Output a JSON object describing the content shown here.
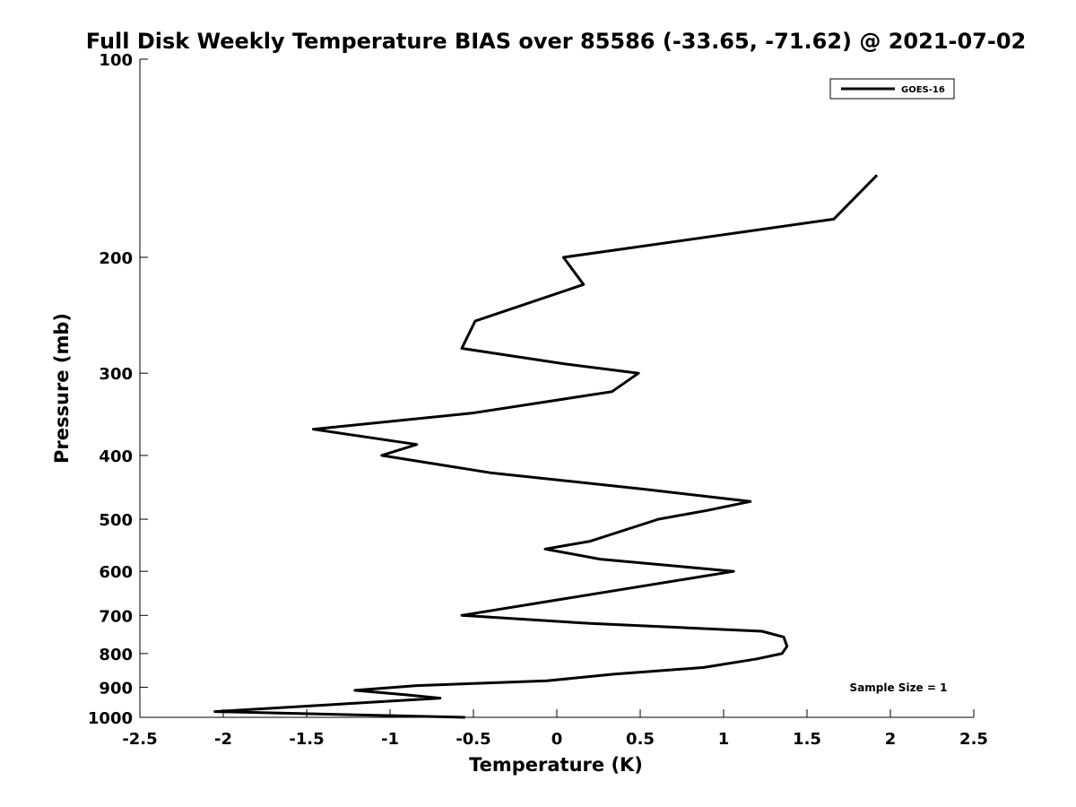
{
  "chart_data": {
    "type": "line",
    "title": "Full Disk Weekly Temperature BIAS over 85586 (-33.65, -71.62) @ 2021-07-02",
    "xlabel": "Temperature (K)",
    "ylabel": "Pressure (mb)",
    "xlim": [
      -2.5,
      2.5
    ],
    "ylim": [
      1000,
      100
    ],
    "y_scale": "log",
    "x_ticks": [
      "-2.5",
      "-2",
      "-1.5",
      "-1",
      "-0.5",
      "0",
      "0.5",
      "1",
      "1.5",
      "2",
      "2.5"
    ],
    "y_ticks": [
      "100",
      "200",
      "300",
      "400",
      "500",
      "600",
      "700",
      "800",
      "900",
      "1000"
    ],
    "grid": false,
    "legend_position": "top-right",
    "series": [
      {
        "name": "GOES-16",
        "color": "#000000",
        "points": [
          [
            1.92,
            150
          ],
          [
            1.66,
            175
          ],
          [
            0.04,
            200
          ],
          [
            0.16,
            220
          ],
          [
            -0.49,
            250
          ],
          [
            -0.57,
            275
          ],
          [
            0.03,
            290
          ],
          [
            0.49,
            300
          ],
          [
            0.33,
            320
          ],
          [
            -0.51,
            345
          ],
          [
            -1.46,
            365
          ],
          [
            -0.84,
            385
          ],
          [
            -1.05,
            400
          ],
          [
            -0.4,
            425
          ],
          [
            0.52,
            450
          ],
          [
            1.16,
            470
          ],
          [
            0.9,
            485
          ],
          [
            0.61,
            500
          ],
          [
            0.2,
            540
          ],
          [
            -0.07,
            555
          ],
          [
            0.26,
            575
          ],
          [
            1.06,
            600
          ],
          [
            -0.57,
            700
          ],
          [
            0.2,
            720
          ],
          [
            1.23,
            740
          ],
          [
            1.36,
            755
          ],
          [
            1.38,
            780
          ],
          [
            1.35,
            800
          ],
          [
            1.2,
            815
          ],
          [
            0.88,
            840
          ],
          [
            0.34,
            860
          ],
          [
            -0.06,
            880
          ],
          [
            -0.84,
            895
          ],
          [
            -1.21,
            910
          ],
          [
            -0.89,
            925
          ],
          [
            -0.7,
            935
          ],
          [
            -2.05,
            980
          ],
          [
            -0.55,
            1000
          ]
        ]
      }
    ],
    "annotation": "Sample Size = 1"
  }
}
